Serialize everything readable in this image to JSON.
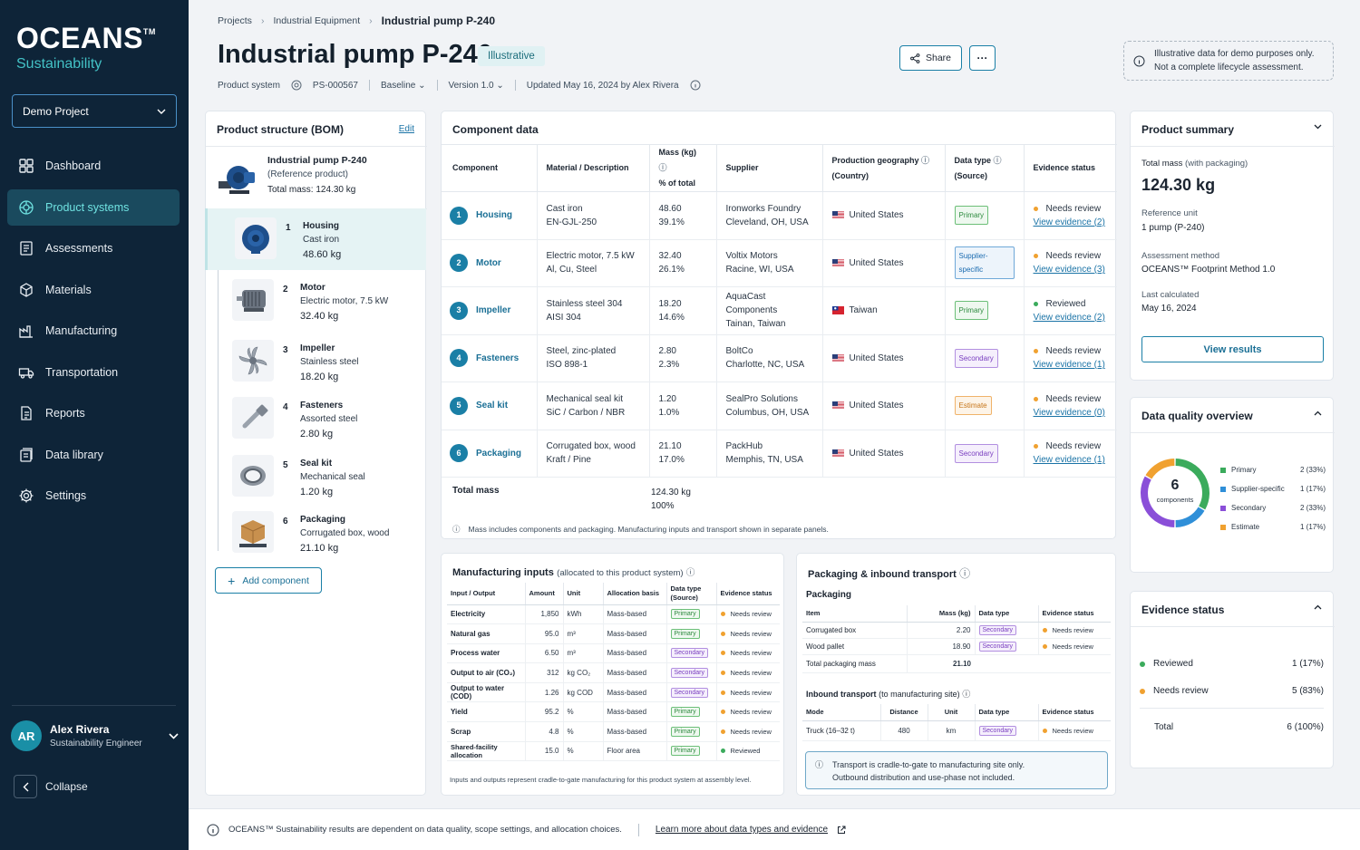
{
  "brand": {
    "name": "OCEANS",
    "tm": "TM",
    "sub": "Sustainability"
  },
  "project_select": "Demo Project",
  "nav": [
    "Dashboard",
    "Product systems",
    "Assessments",
    "Materials",
    "Manufacturing",
    "Transportation",
    "Reports",
    "Data library",
    "Settings"
  ],
  "user": {
    "initials": "AR",
    "name": "Alex Rivera",
    "role": "Sustainability Engineer"
  },
  "collapse": "Collapse",
  "breadcrumb": [
    "Projects",
    "Industrial Equipment",
    "Industrial pump P-240"
  ],
  "title": "Industrial pump P-240",
  "tag": "Illustrative",
  "meta": {
    "type": "Product system",
    "id": "PS-000567",
    "scenario": "Baseline",
    "version": "Version 1.0",
    "updated": "Updated May 16, 2024 by Alex Rivera"
  },
  "share": "Share",
  "more": "···",
  "notice": [
    "Illustrative data for demo purposes only.",
    "Not a complete lifecycle assessment."
  ],
  "bom": {
    "title": "Product structure (BOM)",
    "edit": "Edit",
    "root": {
      "name": "Industrial pump P-240",
      "note": "(Reference product)",
      "mass": "Total mass: 124.30 kg"
    },
    "items": [
      {
        "num": "1",
        "name": "Housing",
        "desc": "Cast iron",
        "mass": "48.60 kg"
      },
      {
        "num": "2",
        "name": "Motor",
        "desc": "Electric motor, 7.5 kW",
        "mass": "32.40 kg"
      },
      {
        "num": "3",
        "name": "Impeller",
        "desc": "Stainless steel",
        "mass": "18.20 kg"
      },
      {
        "num": "4",
        "name": "Fasteners",
        "desc": "Assorted steel",
        "mass": "2.80 kg"
      },
      {
        "num": "5",
        "name": "Seal kit",
        "desc": "Mechanical seal",
        "mass": "1.20 kg"
      },
      {
        "num": "6",
        "name": "Packaging",
        "desc": "Corrugated box, wood",
        "mass": "21.10 kg"
      }
    ],
    "add": "Add component"
  },
  "comp": {
    "title": "Component data",
    "headers": {
      "c1": "Component",
      "c2": "Material / Description",
      "c3a": "Mass (kg)",
      "c3b": "% of total",
      "c4": "Supplier",
      "c5a": "Production geography",
      "c5b": "(Country)",
      "c6a": "Data type",
      "c6b": "(Source)",
      "c7": "Evidence status"
    },
    "rows": [
      {
        "num": "1",
        "name": "Housing",
        "mat1": "Cast iron",
        "mat2": "EN-GJL-250",
        "mass": "48.60",
        "pct": "39.1%",
        "sup1": "Ironworks Foundry",
        "sup2": "Cleveland, OH, USA",
        "geo": "United States",
        "type": "Primary",
        "ev": "Needs review",
        "link": "View evidence (2)"
      },
      {
        "num": "2",
        "name": "Motor",
        "mat1": "Electric motor, 7.5 kW",
        "mat2": "Al, Cu, Steel",
        "mass": "32.40",
        "pct": "26.1%",
        "sup1": "Voltix Motors",
        "sup2": "Racine, WI, USA",
        "geo": "United States",
        "type": "Supplier-specific",
        "ev": "Needs review",
        "link": "View evidence (3)"
      },
      {
        "num": "3",
        "name": "Impeller",
        "mat1": "Stainless steel 304",
        "mat2": "AISI 304",
        "mass": "18.20",
        "pct": "14.6%",
        "sup1": "AquaCast Components",
        "sup2": "Tainan, Taiwan",
        "geo": "Taiwan",
        "type": "Primary",
        "ev": "Reviewed",
        "link": "View evidence (2)"
      },
      {
        "num": "4",
        "name": "Fasteners",
        "mat1": "Steel, zinc-plated",
        "mat2": "ISO 898-1",
        "mass": "2.80",
        "pct": "2.3%",
        "sup1": "BoltCo",
        "sup2": "Charlotte, NC, USA",
        "geo": "United States",
        "type": "Secondary",
        "ev": "Needs review",
        "link": "View evidence (1)"
      },
      {
        "num": "5",
        "name": "Seal kit",
        "mat1": "Mechanical seal kit",
        "mat2": "SiC / Carbon / NBR",
        "mass": "1.20",
        "pct": "1.0%",
        "sup1": "SealPro Solutions",
        "sup2": "Columbus, OH, USA",
        "geo": "United States",
        "type": "Estimate",
        "ev": "Needs review",
        "link": "View evidence (0)"
      },
      {
        "num": "6",
        "name": "Packaging",
        "mat1": "Corrugated box, wood",
        "mat2": "Kraft / Pine",
        "mass": "21.10",
        "pct": "17.0%",
        "sup1": "PackHub",
        "sup2": "Memphis, TN, USA",
        "geo": "United States",
        "type": "Secondary",
        "ev": "Needs review",
        "link": "View evidence (1)"
      }
    ],
    "total_label": "Total mass",
    "total_mass": "124.30 kg",
    "total_pct": "100%",
    "footnote": "Mass includes components and packaging. Manufacturing inputs and transport shown in separate panels."
  },
  "mfg": {
    "title": "Manufacturing inputs",
    "subtitle": "(allocated to this product system)",
    "headers": {
      "h1": "Input / Output",
      "h2": "Amount",
      "h3": "Unit",
      "h4": "Allocation basis",
      "h5a": "Data type",
      "h5b": "(Source)",
      "h6": "Evidence status"
    },
    "rows": [
      {
        "name": "Electricity",
        "amt": "1,850",
        "unit": "kWh",
        "basis": "Mass-based",
        "type": "Primary",
        "ev": "Needs review"
      },
      {
        "name": "Natural gas",
        "amt": "95.0",
        "unit": "m³",
        "basis": "Mass-based",
        "type": "Primary",
        "ev": "Needs review"
      },
      {
        "name": "Process water",
        "amt": "6.50",
        "unit": "m³",
        "basis": "Mass-based",
        "type": "Secondary",
        "ev": "Needs review"
      },
      {
        "name": "Output to air (CO₂)",
        "amt": "312",
        "unit": "kg CO₂",
        "basis": "Mass-based",
        "type": "Secondary",
        "ev": "Needs review"
      },
      {
        "name": "Output to water (COD)",
        "amt": "1.26",
        "unit": "kg COD",
        "basis": "Mass-based",
        "type": "Secondary",
        "ev": "Needs review"
      },
      {
        "name": "Yield",
        "amt": "95.2",
        "unit": "%",
        "basis": "Mass-based",
        "type": "Primary",
        "ev": "Needs review"
      },
      {
        "name": "Scrap",
        "amt": "4.8",
        "unit": "%",
        "basis": "Mass-based",
        "type": "Primary",
        "ev": "Needs review"
      },
      {
        "name": "Shared-facility allocation",
        "amt": "15.0",
        "unit": "%",
        "basis": "Floor area",
        "type": "Primary",
        "ev": "Reviewed"
      }
    ],
    "footnote": "Inputs and outputs represent cradle-to-gate manufacturing for this product system at assembly level."
  },
  "pack": {
    "title": "Packaging & inbound transport",
    "packaging_label": "Packaging",
    "ph": {
      "h1": "Item",
      "h2": "Mass (kg)",
      "h3": "Data type",
      "h4": "Evidence status"
    },
    "prows": [
      {
        "name": "Corrugated box",
        "mass": "2.20",
        "type": "Secondary",
        "ev": "Needs review"
      },
      {
        "name": "Wood pallet",
        "mass": "18.90",
        "type": "Secondary",
        "ev": "Needs review"
      }
    ],
    "ptotal_label": "Total packaging mass",
    "ptotal": "21.10",
    "transport_label": "Inbound transport",
    "transport_sub": "(to manufacturing site)",
    "th": {
      "h1": "Mode",
      "h2": "Distance",
      "h3": "Unit",
      "h4": "Data type",
      "h5": "Evidence status"
    },
    "trows": [
      {
        "mode": "Truck (16–32 t)",
        "dist": "480",
        "unit": "km",
        "type": "Secondary",
        "ev": "Needs review"
      }
    ],
    "info": [
      "Transport is cradle-to-gate to manufacturing site only.",
      "Outbound distribution and use-phase not included."
    ]
  },
  "summary": {
    "title": "Product summary",
    "mass_label": "Total mass",
    "mass_note": "(with packaging)",
    "mass": "124.30 kg",
    "ref_label": "Reference unit",
    "ref": "1 pump (P-240)",
    "method_label": "Assessment method",
    "method": "OCEANS™ Footprint Method 1.0",
    "calc_label": "Last calculated",
    "calc": "May 16, 2024",
    "button": "View results"
  },
  "dq": {
    "title": "Data quality overview",
    "count": "6",
    "count_label": "components",
    "legend": [
      {
        "name": "Primary",
        "value": "2 (33%)",
        "color": "#3bab5c",
        "n": 2
      },
      {
        "name": "Supplier-specific",
        "value": "1 (17%)",
        "color": "#2f8fd8",
        "n": 1
      },
      {
        "name": "Secondary",
        "value": "2 (33%)",
        "color": "#8a4fd8",
        "n": 2
      },
      {
        "name": "Estimate",
        "value": "1 (17%)",
        "color": "#f0a130",
        "n": 1
      }
    ]
  },
  "evstatus": {
    "title": "Evidence status",
    "rows": [
      {
        "name": "Reviewed",
        "value": "1 (17%)",
        "color": "#3bab5c"
      },
      {
        "name": "Needs review",
        "value": "5 (83%)",
        "color": "#f0a130"
      }
    ],
    "total_label": "Total",
    "total": "6 (100%)"
  },
  "footer": {
    "text": "OCEANS™ Sustainability results are dependent on data quality, scope settings, and allocation choices.",
    "link": "Learn more about data types and evidence"
  }
}
